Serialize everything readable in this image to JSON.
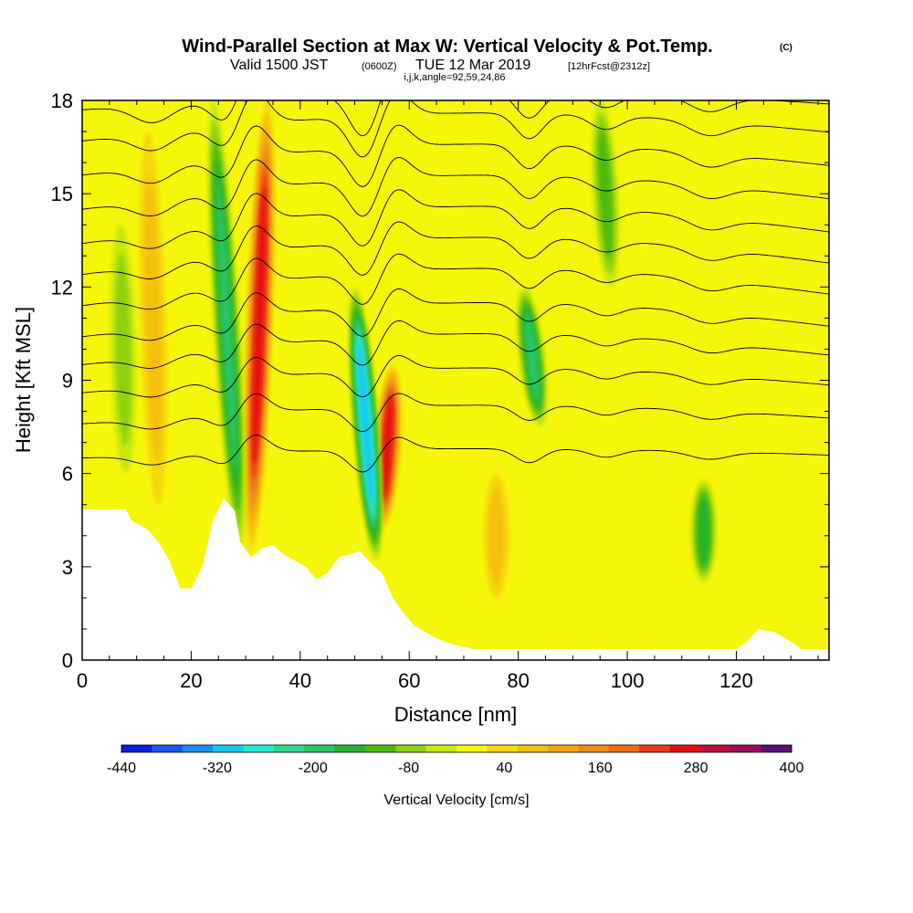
{
  "header": {
    "title_main": "Wind-Parallel Section at Max W: Vertical Velocity & Pot.Temp.",
    "title_mark": "(C)",
    "subtitle_a": "Valid 1500 JST",
    "subtitle_b": "(0600Z)",
    "subtitle_c": "TUE 12 Mar 2019",
    "subtitle_d": "[12hrFcst@2312z]",
    "subtitle_e": "i,j,k,angle=92,59,24,86"
  },
  "chart_data": {
    "type": "heatmap",
    "title": "Wind-Parallel Section at Max W: Vertical Velocity & Pot.Temp.",
    "xlabel": "Distance [nm]",
    "ylabel": "Height [Kft MSL]",
    "xlim": [
      0,
      137
    ],
    "ylim": [
      0,
      18
    ],
    "x_ticks": [
      0,
      20,
      40,
      60,
      80,
      100,
      120
    ],
    "y_ticks": [
      0,
      3,
      6,
      9,
      12,
      15,
      18
    ],
    "background_value_range": "0 to 40 cm/s (yellow)",
    "colorbar": {
      "label": "Vertical Velocity [cm/s]",
      "tick_labels": [
        "-440",
        "-320",
        "-200",
        "-80",
        "40",
        "160",
        "280",
        "400"
      ],
      "tick_values": [
        -440,
        -320,
        -200,
        -80,
        40,
        160,
        280,
        400
      ],
      "levels": [
        -440,
        -400,
        -360,
        -320,
        -280,
        -240,
        -200,
        -160,
        -120,
        -80,
        -40,
        0,
        40,
        80,
        120,
        160,
        200,
        240,
        280,
        320,
        360,
        400
      ],
      "colors": [
        "#0a1fe0",
        "#1a55f0",
        "#1a8df0",
        "#16c7f3",
        "#22ecd2",
        "#34d791",
        "#2cc468",
        "#27b42f",
        "#4cbb0e",
        "#8dd20d",
        "#c8e80d",
        "#f6f60a",
        "#f5d80a",
        "#f5bf0b",
        "#f5a60c",
        "#f08c1a",
        "#ee6c16",
        "#ec3a10",
        "#e60c0c",
        "#c20e3c",
        "#9a0c5e",
        "#5c0e7e"
      ]
    },
    "terrain_top_kft": {
      "x": [
        0,
        8,
        9,
        12,
        14,
        16,
        18,
        20,
        22,
        24,
        26,
        28,
        29,
        31,
        33,
        35,
        37,
        39,
        41,
        43,
        45,
        47,
        49,
        51,
        53,
        55,
        57,
        59,
        61,
        63,
        65,
        68,
        72,
        76,
        80,
        84,
        88,
        92,
        96,
        100,
        104,
        108,
        112,
        116,
        120,
        122,
        124,
        127,
        130,
        132,
        137
      ],
      "y": [
        4.85,
        4.85,
        4.5,
        4.2,
        3.8,
        3.2,
        2.3,
        2.3,
        3.0,
        4.5,
        5.2,
        4.8,
        3.8,
        3.3,
        3.6,
        3.7,
        3.4,
        3.2,
        3.0,
        2.6,
        2.8,
        3.3,
        3.4,
        3.5,
        3.1,
        2.8,
        2.0,
        1.5,
        1.1,
        0.9,
        0.7,
        0.5,
        0.35,
        0.35,
        0.35,
        0.35,
        0.35,
        0.35,
        0.35,
        0.35,
        0.35,
        0.35,
        0.35,
        0.35,
        0.35,
        0.6,
        1.0,
        0.9,
        0.6,
        0.35,
        0.35
      ]
    },
    "vertical_velocity_features": [
      {
        "kind": "updraft",
        "x_base": 31,
        "x_top": 34,
        "y_bottom": 3.5,
        "y_top": 18,
        "peak_cm_s": 300
      },
      {
        "kind": "downdraft",
        "x_base": 29,
        "x_top": 24,
        "y_bottom": 3.5,
        "y_top": 18,
        "peak_cm_s": -160
      },
      {
        "kind": "updraft",
        "x_base": 55,
        "x_top": 57,
        "y_bottom": 4.2,
        "y_top": 9.5,
        "peak_cm_s": 280
      },
      {
        "kind": "downdraft",
        "x_base": 54,
        "x_top": 50,
        "y_bottom": 3.2,
        "y_top": 12,
        "peak_cm_s": -280
      },
      {
        "kind": "downdraft",
        "x_base": 84,
        "x_top": 81,
        "y_bottom": 7.5,
        "y_top": 12,
        "peak_cm_s": -160
      },
      {
        "kind": "downdraft",
        "x_base": 114,
        "x_top": 114,
        "y_bottom": 2.5,
        "y_top": 5.8,
        "peak_cm_s": -120
      },
      {
        "kind": "updraft",
        "x_base": 76,
        "x_top": 76,
        "y_bottom": 2.0,
        "y_top": 6.0,
        "peak_cm_s": 100
      },
      {
        "kind": "updraft",
        "x_base": 14,
        "x_top": 12,
        "y_bottom": 5.0,
        "y_top": 17,
        "peak_cm_s": 80
      },
      {
        "kind": "downdraft",
        "x_base": 8,
        "x_top": 7,
        "y_bottom": 6.0,
        "y_top": 14,
        "peak_cm_s": -60
      },
      {
        "kind": "downdraft",
        "x_base": 97,
        "x_top": 95,
        "y_bottom": 12,
        "y_top": 18,
        "peak_cm_s": -80
      }
    ],
    "pot_temp_contours": [
      {
        "base": 6.5,
        "lift": 0.3
      },
      {
        "base": 7.6,
        "lift": 0.6
      },
      {
        "base": 8.6,
        "lift": 0.8
      },
      {
        "base": 9.5,
        "lift": 1.0
      },
      {
        "base": 10.4,
        "lift": 1.1
      },
      {
        "base": 11.4,
        "lift": 1.2
      },
      {
        "base": 12.4,
        "lift": 1.2
      },
      {
        "base": 13.4,
        "lift": 1.2
      },
      {
        "base": 14.5,
        "lift": 1.1
      },
      {
        "base": 15.6,
        "lift": 1.0
      },
      {
        "base": 16.7,
        "lift": 0.9
      },
      {
        "base": 17.7,
        "lift": 0.6
      }
    ]
  }
}
